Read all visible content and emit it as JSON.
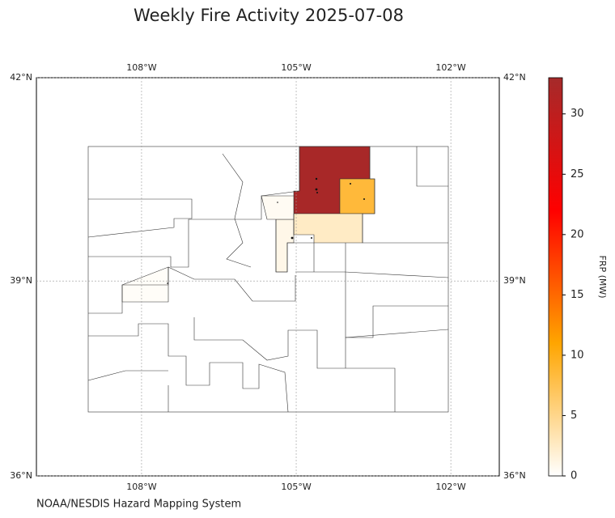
{
  "title": "Weekly Fire Activity 2025-07-08",
  "source": "NOAA/NESDIS Hazard Mapping System",
  "map": {
    "lonlim": [
      -110.04,
      -101.06
    ],
    "latlim": [
      36,
      42
    ],
    "lon_ticks": [
      {
        "value": -108,
        "label": "108°W"
      },
      {
        "value": -105,
        "label": "105°W"
      },
      {
        "value": -102,
        "label": "102°W"
      }
    ],
    "lat_ticks": [
      {
        "value": 42,
        "label": "42°N"
      },
      {
        "value": 39,
        "label": "39°N"
      },
      {
        "value": 36,
        "label": "36°N"
      }
    ],
    "grid": true
  },
  "colorbar": {
    "label": "FRP (MW)",
    "lim": [
      0,
      33
    ],
    "ticks": [
      0,
      5,
      10,
      15,
      20,
      25,
      30
    ],
    "colors": [
      "#ffffff",
      "#ffa500",
      "#ff0000",
      "#a52a2a"
    ]
  },
  "fire_areas": [
    {
      "frp": 32.6
    },
    {
      "frp": 8.5
    },
    {
      "frp": 2.5
    },
    {
      "frp": 1
    },
    {
      "frp": 0.5
    },
    {
      "frp": 0.3
    }
  ]
}
